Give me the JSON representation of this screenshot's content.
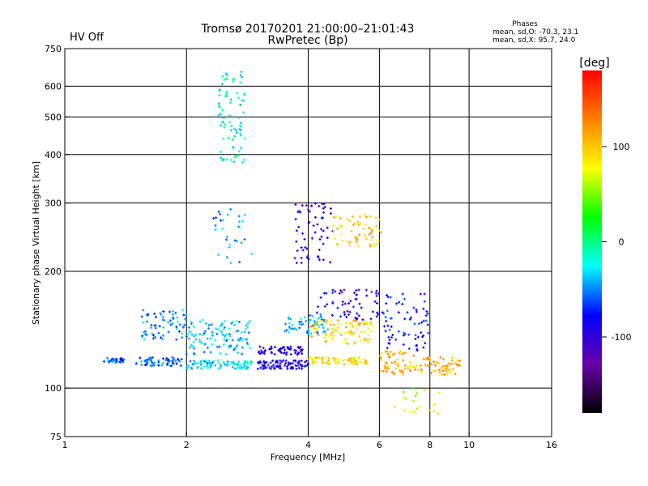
{
  "chart_data": {
    "type": "scatter",
    "title": "Tromsø 20170201 21:00:00–21:01:43",
    "subtitle": "RwPretec (Bp)",
    "status": "HV Off",
    "status_color": "#cc0000",
    "stats": {
      "heading": "Phases",
      "line1": "mean, sd,O: -70.3, 23.1",
      "line2": "mean, sd,X:  95.7, 24.0"
    },
    "xlabel": "Frequency [MHz]",
    "ylabel": "Stationary phase Virtual Height [km]",
    "xscale": "log",
    "yscale": "log",
    "xlim": [
      1,
      16
    ],
    "ylim": [
      75,
      750
    ],
    "x_ticks": [
      {
        "v": 1,
        "label": "1"
      },
      {
        "v": 2,
        "label": "2"
      },
      {
        "v": 4,
        "label": "4"
      },
      {
        "v": 6,
        "label": "6"
      },
      {
        "v": 8,
        "label": "8"
      },
      {
        "v": 10,
        "label": "10"
      },
      {
        "v": 16,
        "label": "16"
      }
    ],
    "y_ticks": [
      {
        "v": 75,
        "label": "75"
      },
      {
        "v": 100,
        "label": "100"
      },
      {
        "v": 200,
        "label": "200"
      },
      {
        "v": 300,
        "label": "300"
      },
      {
        "v": 400,
        "label": "400"
      },
      {
        "v": 500,
        "label": "500"
      },
      {
        "v": 600,
        "label": "600"
      },
      {
        "v": 750,
        "label": "750"
      }
    ],
    "grid_x": [
      2,
      4,
      6,
      8,
      10
    ],
    "grid_y": [
      100,
      200,
      300,
      400,
      500,
      600
    ],
    "grid": true,
    "colorbar": {
      "label": "[deg]",
      "range": [
        -180,
        180
      ],
      "ticks": [
        {
          "v": 100,
          "label": "100"
        },
        {
          "v": 0,
          "label": "0"
        },
        {
          "v": -100,
          "label": "-100"
        }
      ],
      "stops": [
        "#000000",
        "#6a00a8",
        "#0000ff",
        "#00ffff",
        "#00ff00",
        "#ffff00",
        "#ff8000",
        "#ff0000"
      ]
    },
    "point_clusters": [
      {
        "fmin": 1.25,
        "fmax": 1.4,
        "hmin": 116,
        "hmax": 120,
        "phase": -60,
        "n": 30
      },
      {
        "fmin": 1.5,
        "fmax": 1.95,
        "hmin": 114,
        "hmax": 120,
        "phase": -60,
        "n": 60
      },
      {
        "fmin": 1.55,
        "fmax": 2.0,
        "hmin": 133,
        "hmax": 160,
        "phase": -50,
        "n": 70
      },
      {
        "fmin": 2.0,
        "fmax": 2.9,
        "hmin": 112,
        "hmax": 118,
        "phase": -30,
        "n": 90
      },
      {
        "fmin": 2.0,
        "fmax": 2.9,
        "hmin": 122,
        "hmax": 150,
        "phase": -35,
        "n": 110
      },
      {
        "fmin": 2.4,
        "fmax": 2.8,
        "hmin": 380,
        "hmax": 660,
        "phase": -20,
        "n": 80
      },
      {
        "fmin": 2.3,
        "fmax": 2.9,
        "hmin": 210,
        "hmax": 290,
        "phase": -45,
        "n": 30
      },
      {
        "fmin": 3.0,
        "fmax": 4.0,
        "hmin": 112,
        "hmax": 118,
        "phase": -90,
        "n": 90
      },
      {
        "fmin": 3.0,
        "fmax": 3.9,
        "hmin": 122,
        "hmax": 128,
        "phase": -95,
        "n": 60
      },
      {
        "fmin": 3.5,
        "fmax": 4.5,
        "hmin": 138,
        "hmax": 155,
        "phase": -40,
        "n": 60
      },
      {
        "fmin": 3.7,
        "fmax": 4.6,
        "hmin": 210,
        "hmax": 300,
        "phase": -100,
        "n": 60
      },
      {
        "fmin": 4.0,
        "fmax": 5.6,
        "hmin": 115,
        "hmax": 120,
        "phase": 90,
        "n": 70
      },
      {
        "fmin": 4.0,
        "fmax": 5.8,
        "hmin": 130,
        "hmax": 150,
        "phase": 95,
        "n": 90
      },
      {
        "fmin": 4.2,
        "fmax": 6.0,
        "hmin": 150,
        "hmax": 180,
        "phase": -90,
        "n": 60
      },
      {
        "fmin": 4.6,
        "fmax": 6.1,
        "hmin": 230,
        "hmax": 280,
        "phase": 100,
        "n": 60
      },
      {
        "fmin": 6.0,
        "fmax": 7.5,
        "hmin": 108,
        "hmax": 125,
        "phase": 110,
        "n": 60
      },
      {
        "fmin": 6.1,
        "fmax": 8.0,
        "hmin": 125,
        "hmax": 175,
        "phase": -80,
        "n": 70
      },
      {
        "fmin": 7.5,
        "fmax": 9.5,
        "hmin": 108,
        "hmax": 120,
        "phase": 110,
        "n": 60
      },
      {
        "fmin": 6.5,
        "fmax": 8.5,
        "hmin": 85,
        "hmax": 100,
        "phase": 60,
        "n": 20
      }
    ]
  }
}
